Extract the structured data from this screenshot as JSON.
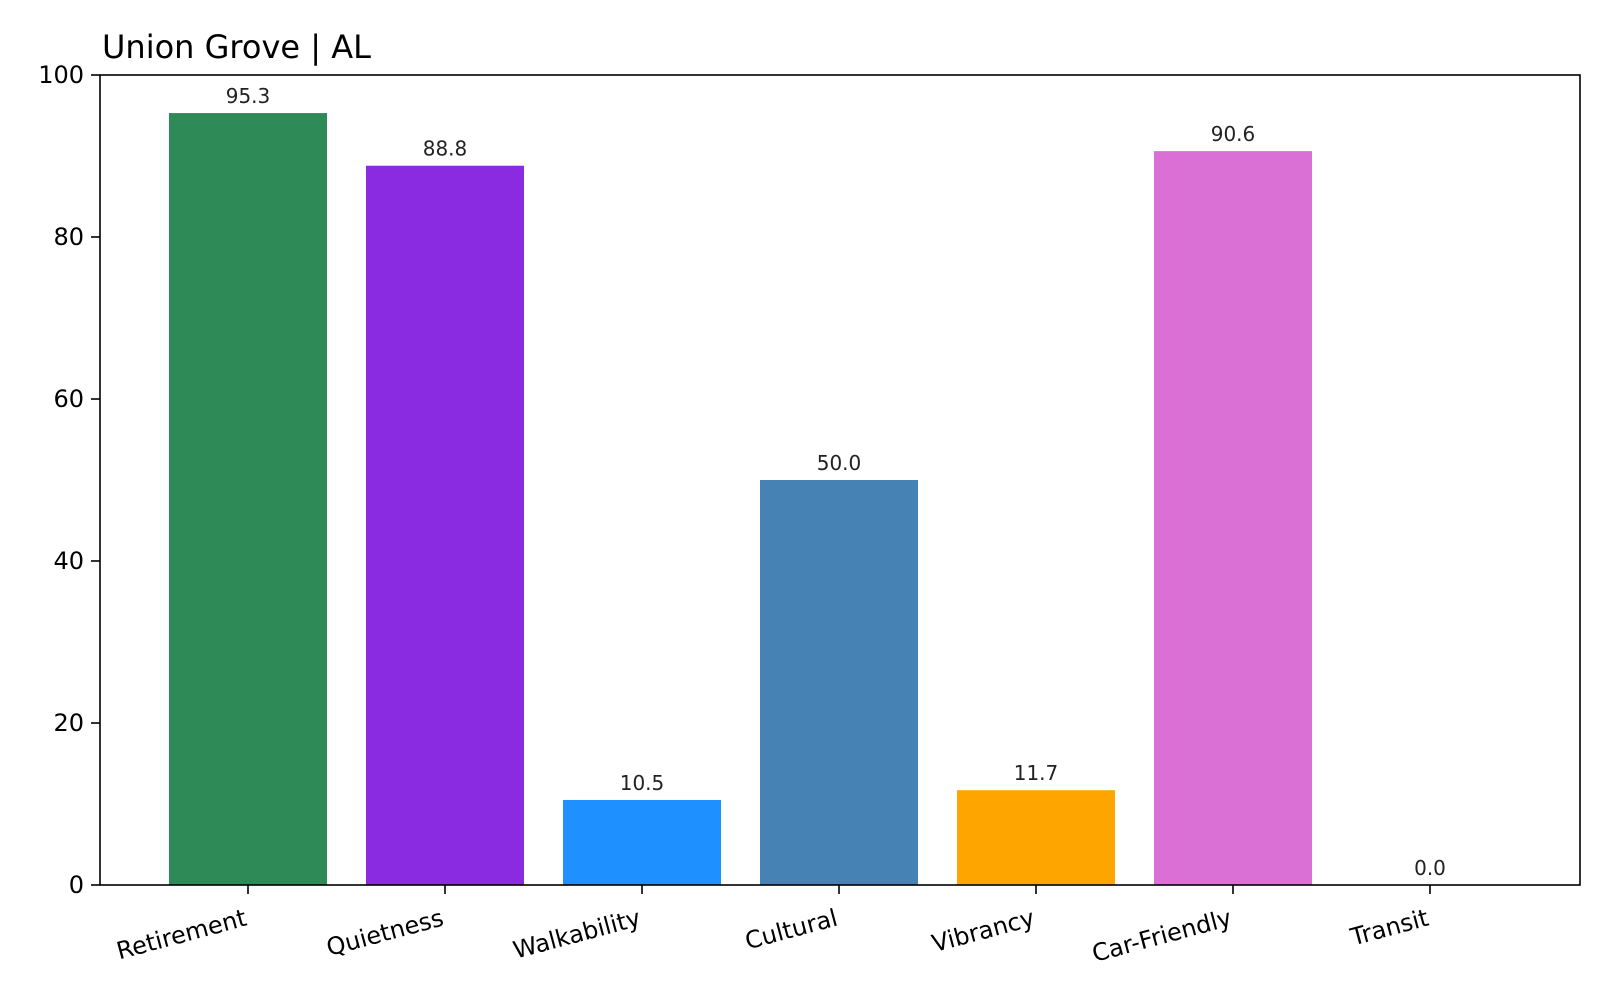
{
  "chart_data": {
    "type": "bar",
    "title": "Union Grove | AL",
    "xlabel": "",
    "ylabel": "",
    "ylim": [
      0,
      100
    ],
    "yticks": [
      0,
      20,
      40,
      60,
      80,
      100
    ],
    "grid": false,
    "categories": [
      "Retirement",
      "Quietness",
      "Walkability",
      "Cultural",
      "Vibrancy",
      "Car-Friendly",
      "Transit"
    ],
    "values": [
      95.3,
      88.8,
      10.5,
      50.0,
      11.7,
      90.6,
      0.0
    ],
    "value_labels": [
      "95.3",
      "88.8",
      "10.5",
      "50.0",
      "11.7",
      "90.6",
      "0.0"
    ],
    "colors": [
      "#2e8b57",
      "#8a2be2",
      "#1e90ff",
      "#4682b4",
      "#ffa500",
      "#da70d6",
      "#87ceeb"
    ]
  }
}
